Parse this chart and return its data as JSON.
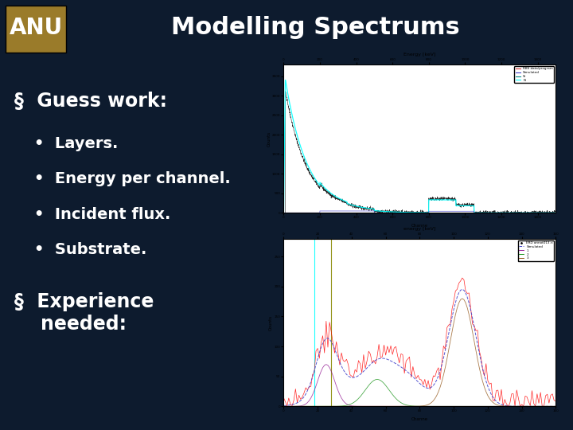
{
  "title": "Modelling Spectrums",
  "title_color": "#ffffff",
  "title_fontsize": 22,
  "background_color": "#0d1b2e",
  "header_bg": "#050505",
  "anu_logo_color": "#9a7b2a",
  "anu_text": "ANU",
  "section1_header": "§  Guess work:",
  "section1_bullets": [
    "Layers.",
    "Energy per channel.",
    "Incident flux.",
    "Substrate."
  ],
  "section2_header": "§  Experience\n    needed:",
  "text_color": "#ffffff",
  "header_fontsize": 17,
  "bullet_fontsize": 14
}
